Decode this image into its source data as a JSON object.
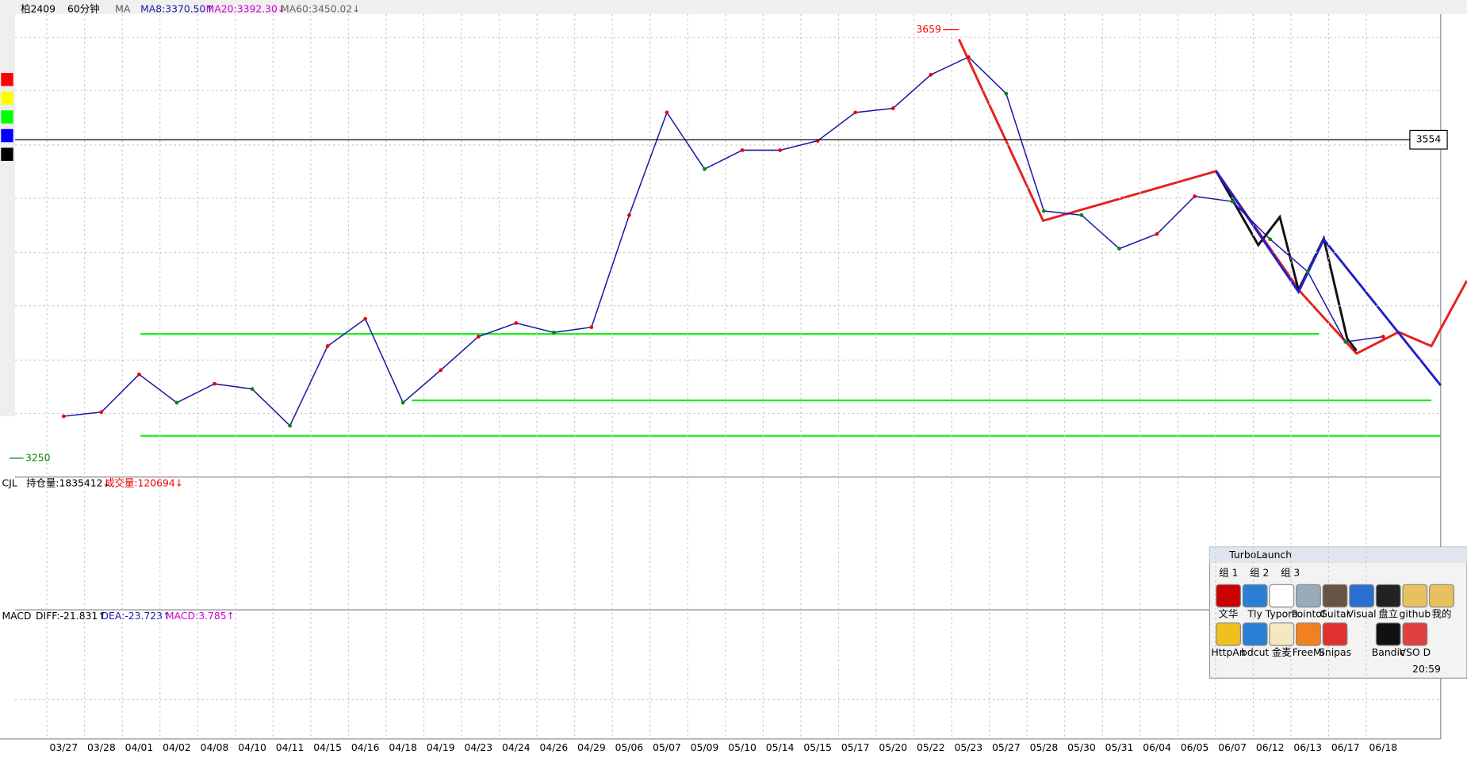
{
  "toolbar": {
    "symbol": "柏2409",
    "period": "60分钟",
    "indicator": "MA",
    "ma8": "MA8:3370.50↑",
    "ma20": "MA20:3392.30↓",
    "ma60": "MA60:3450.02↓"
  },
  "chart_data": {
    "type": "line",
    "color": "#1a1aa8",
    "categories": [
      "03/27",
      "03/28",
      "04/01",
      "04/02",
      "04/08",
      "04/10",
      "04/11",
      "04/15",
      "04/16",
      "04/18",
      "04/19",
      "04/23",
      "04/24",
      "04/26",
      "04/29",
      "05/06",
      "05/07",
      "05/09",
      "05/10",
      "05/14",
      "05/15",
      "05/17",
      "05/20",
      "05/22",
      "05/23",
      "05/27",
      "05/28",
      "05/30",
      "05/31",
      "06/04",
      "06/05",
      "06/07",
      "06/12",
      "06/13",
      "06/17",
      "06/18"
    ],
    "values": [
      3290,
      3294,
      3330,
      3303,
      3321,
      3316,
      3281,
      3357,
      3383,
      3303,
      3334,
      3366,
      3379,
      3370,
      3375,
      3482,
      3580,
      3526,
      3544,
      3544,
      3553,
      3580,
      3584,
      3616,
      3633,
      3598,
      3486,
      3482,
      3450,
      3464,
      3500,
      3495,
      3459,
      3428,
      3361,
      3366
    ],
    "ylim": [
      3232,
      3674
    ],
    "high": 3659,
    "high_label": "3659",
    "low": 3250,
    "low_label": "3250",
    "cursor_price": 3554,
    "cursor_label": "3554"
  },
  "volume_panel": {
    "name": "CJL",
    "open_interest": "持仓量:1835412↓",
    "volume": "成交量:120694↓"
  },
  "macd_panel": {
    "name": "MACD",
    "diff": "DIFF:-21.831↑",
    "dea": "DEA:-23.723↑",
    "macd": "MACD:3.785↑"
  },
  "turbolaunch": {
    "title": "TurboLaunch",
    "tabs": [
      "组 1",
      "组 2",
      "组 3"
    ],
    "icons": [
      "文华",
      "Tly",
      "Typora",
      "Pointof",
      "Guitar",
      "Visual",
      "盘立",
      "github",
      "我的",
      "HttpAn",
      "bdcut",
      "金麦",
      "FreeMi",
      "Snipas",
      "Bandic",
      "VSO D"
    ],
    "time": "20:59"
  }
}
